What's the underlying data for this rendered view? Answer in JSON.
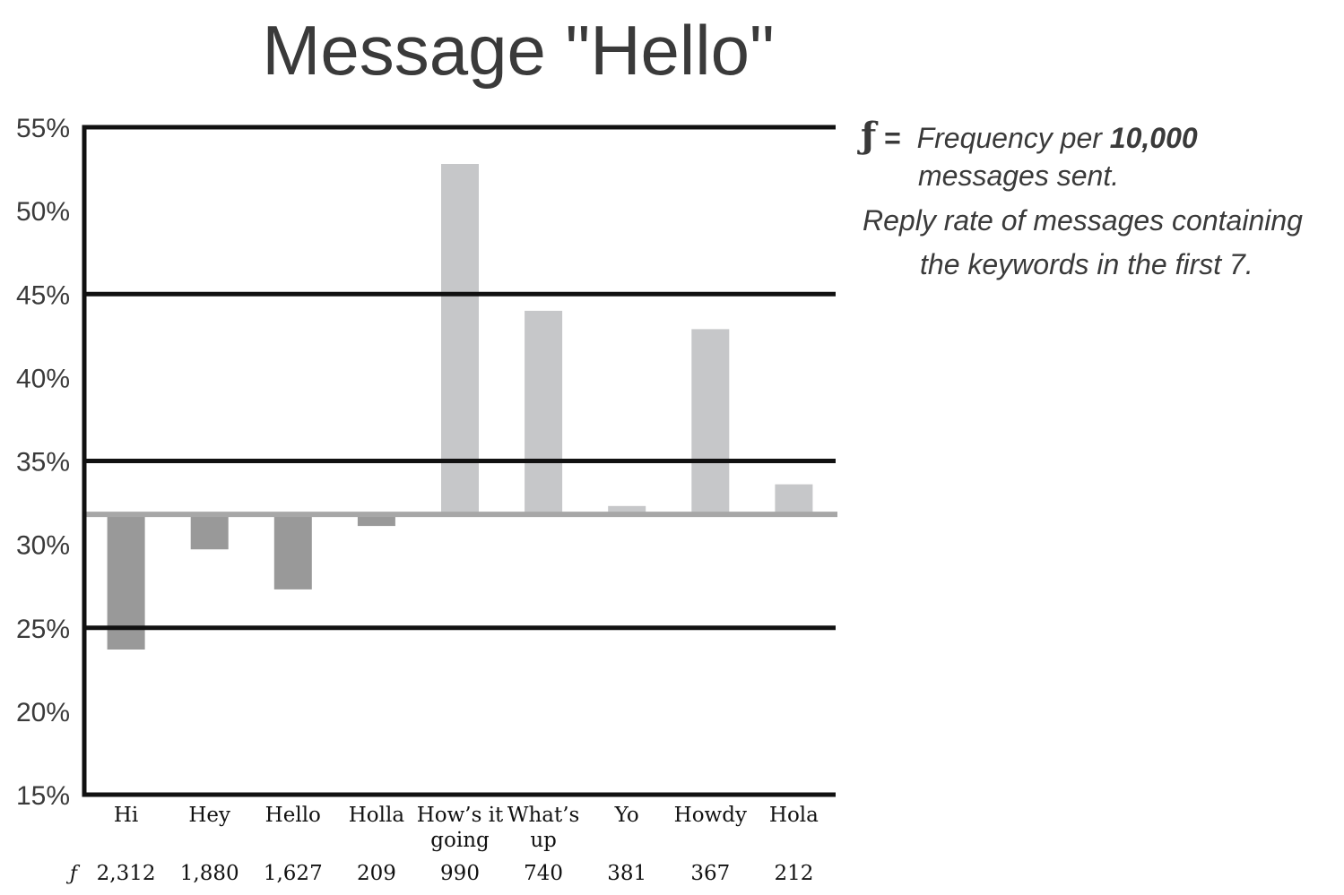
{
  "chart_data": {
    "type": "bar",
    "title": "Message \"Hello\"",
    "baseline": 31.8,
    "ylim": [
      15,
      55
    ],
    "yticks": [
      15,
      20,
      25,
      30,
      35,
      40,
      45,
      50,
      55
    ],
    "ytick_labels": [
      "15%",
      "20%",
      "25%",
      "30%",
      "35%",
      "40%",
      "45%",
      "50%",
      "55%"
    ],
    "bold_gridlines": [
      25,
      35,
      45,
      55
    ],
    "categories": [
      "Hi",
      "Hey",
      "Hello",
      "Holla",
      "How’s it going",
      "What’s up",
      "Yo",
      "Howdy",
      "Hola"
    ],
    "category_lines": [
      [
        "Hi"
      ],
      [
        "Hey"
      ],
      [
        "Hello"
      ],
      [
        "Holla"
      ],
      [
        "How’s it",
        "going"
      ],
      [
        "What’s",
        "up"
      ],
      [
        "Yo"
      ],
      [
        "Howdy"
      ],
      [
        "Hola"
      ]
    ],
    "values": [
      23.7,
      29.7,
      27.3,
      31.1,
      52.8,
      44.0,
      32.3,
      42.9,
      33.6
    ],
    "frequency_symbol": "ƒ",
    "frequency": [
      "2,312",
      "1,880",
      "1,627",
      "209",
      "990",
      "740",
      "381",
      "367",
      "212"
    ],
    "colors": {
      "below_baseline": "#999999",
      "above_baseline": "#c6c7c9",
      "baseline": "#a7a7a7",
      "grid": "#111111",
      "axis": "#111111"
    }
  },
  "legend": {
    "f_symbol": "ƒ",
    "equals": "=",
    "line1_prefix": "Frequency per ",
    "line1_bold": "10,000",
    "line2": "messages sent.",
    "line3": "Reply rate of messages containing",
    "line4": "the keywords in the first 7."
  }
}
